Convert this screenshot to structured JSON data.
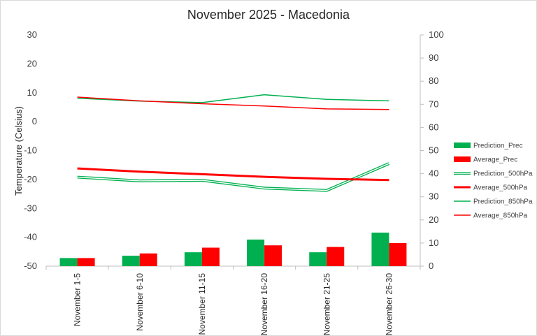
{
  "chart_data": {
    "type": "bar+line",
    "title": "November 2025 - Macedonia",
    "ylabel": "Temperature (Celsius)",
    "ylim": [
      -50,
      30
    ],
    "y_ticks": [
      30,
      20,
      10,
      0,
      -10,
      -20,
      -30,
      -40,
      -50
    ],
    "y2lim": [
      0,
      100
    ],
    "y2_ticks": [
      100,
      90,
      80,
      70,
      60,
      50,
      40,
      30,
      20,
      10,
      0
    ],
    "categories": [
      "November 1-5",
      "November 6-10",
      "November 11-15",
      "November 16-20",
      "November 21-25",
      "November 26-30"
    ],
    "grid": false,
    "legend_position": "right",
    "series": [
      {
        "name": "Prediction_Prec",
        "kind": "bar",
        "axis": "secondary",
        "color": "#00b050",
        "values": [
          3.5,
          4.5,
          6,
          11.5,
          6,
          14.5
        ]
      },
      {
        "name": "Average_Prec",
        "kind": "bar",
        "axis": "secondary",
        "color": "#ff0000",
        "values": [
          3.5,
          5.5,
          8,
          9,
          8.3,
          10
        ]
      },
      {
        "name": "Prediction_500hPa",
        "kind": "double-line",
        "axis": "primary",
        "color": "#00b050",
        "values": [
          -19.2,
          -20.5,
          -20.3,
          -23,
          -23.8,
          -14.5
        ]
      },
      {
        "name": "Average_500hPa",
        "kind": "thick-line",
        "axis": "primary",
        "color": "#ff0000",
        "values": [
          -16.2,
          -17.3,
          -18.2,
          -19.1,
          -19.8,
          -20.2
        ]
      },
      {
        "name": "Prediction_850hPa",
        "kind": "line",
        "axis": "primary",
        "color": "#00b050",
        "values": [
          8.1,
          7.1,
          6.6,
          9.3,
          7.7,
          7.2
        ]
      },
      {
        "name": "Average_850hPa",
        "kind": "line",
        "axis": "primary",
        "color": "#ff0000",
        "values": [
          8.5,
          7.2,
          6.2,
          5.4,
          4.4,
          4.2
        ]
      }
    ]
  }
}
